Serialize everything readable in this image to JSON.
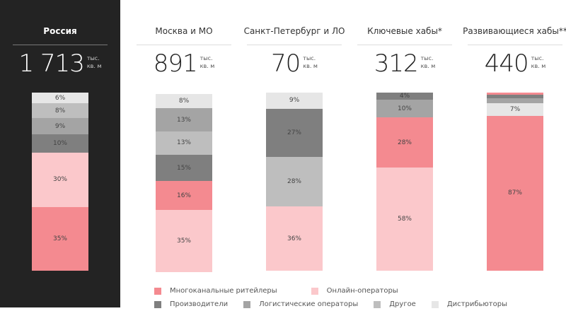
{
  "unit_line1": "тыс.",
  "unit_line2": "кв. м",
  "colors": {
    "multichannel": "#f48a90",
    "online": "#fbc8cb",
    "producers": "#7f7f7f",
    "logistics": "#a4a4a4",
    "other": "#bebebe",
    "distributors": "#e6e6e6"
  },
  "chart_data": {
    "type": "bar",
    "stacked": true,
    "categories": [
      "Россия",
      "Москва и МО",
      "Санкт-Петербург и ЛО",
      "Ключевые хабы*",
      "Развивающиеся хабы**"
    ],
    "totals": [
      "1 713",
      "891",
      "70",
      "312",
      "440"
    ],
    "legend": [
      {
        "key": "multichannel",
        "label": "Многоканальные ритейлеры"
      },
      {
        "key": "online",
        "label": "Онлайн-операторы"
      },
      {
        "key": "producers",
        "label": "Производители"
      },
      {
        "key": "logistics",
        "label": "Логистические операторы"
      },
      {
        "key": "other",
        "label": "Другое"
      },
      {
        "key": "distributors",
        "label": "Дистрибьюторы"
      }
    ],
    "bars": [
      {
        "segments": [
          {
            "key": "distributors",
            "value": 6,
            "label": "6%"
          },
          {
            "key": "other",
            "value": 8,
            "label": "8%"
          },
          {
            "key": "logistics",
            "value": 9,
            "label": "9%"
          },
          {
            "key": "producers",
            "value": 10,
            "label": "10%"
          },
          {
            "key": "online",
            "value": 30,
            "label": "30%"
          },
          {
            "key": "multichannel",
            "value": 35,
            "label": "35%"
          }
        ]
      },
      {
        "segments": [
          {
            "key": "distributors",
            "value": 8,
            "label": "8%"
          },
          {
            "key": "logistics",
            "value": 13,
            "label": "13%"
          },
          {
            "key": "other",
            "value": 13,
            "label": "13%"
          },
          {
            "key": "producers",
            "value": 15,
            "label": "15%"
          },
          {
            "key": "multichannel",
            "value": 16,
            "label": "16%"
          },
          {
            "key": "online",
            "value": 35,
            "label": "35%"
          }
        ]
      },
      {
        "segments": [
          {
            "key": "distributors",
            "value": 9,
            "label": "9%"
          },
          {
            "key": "producers",
            "value": 27,
            "label": "27%"
          },
          {
            "key": "other",
            "value": 28,
            "label": "28%"
          },
          {
            "key": "online",
            "value": 36,
            "label": "36%"
          }
        ]
      },
      {
        "segments": [
          {
            "key": "producers",
            "value": 4,
            "label": "4%"
          },
          {
            "key": "logistics",
            "value": 10,
            "label": "10%"
          },
          {
            "key": "multichannel",
            "value": 28,
            "label": "28%"
          },
          {
            "key": "online",
            "value": 58,
            "label": "58%"
          }
        ]
      },
      {
        "segments": [
          {
            "key": "multichannel",
            "value": 1,
            "label": ""
          },
          {
            "key": "producers",
            "value": 2,
            "label": ""
          },
          {
            "key": "logistics",
            "value": 3,
            "label": ""
          },
          {
            "key": "distributors",
            "value": 7,
            "label": "7%"
          },
          {
            "key": "multichannel",
            "value": 87,
            "label": "87%"
          }
        ]
      }
    ]
  }
}
